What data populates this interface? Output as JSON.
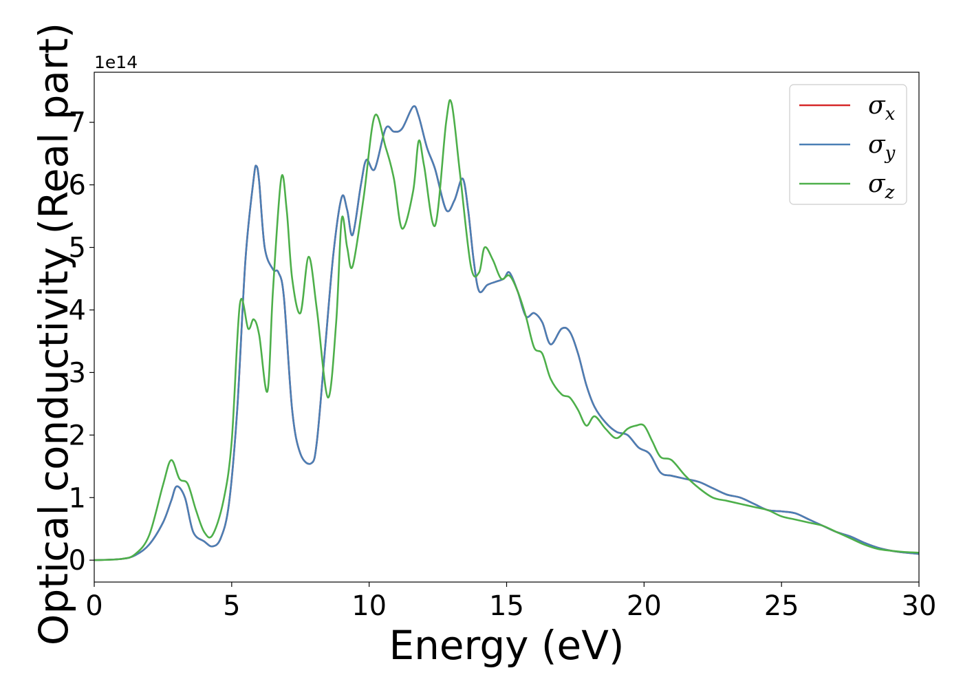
{
  "chart_data": {
    "type": "line",
    "xlabel": "Energy (eV)",
    "ylabel": "Optical conductivity (Real part)",
    "y_offset_label": "1e14",
    "y_scale": 100000000000000.0,
    "xlim": [
      0,
      30
    ],
    "ylim": [
      -0.35,
      7.8
    ],
    "x_ticks": [
      0,
      5,
      10,
      15,
      20,
      25,
      30
    ],
    "x_tick_labels": [
      "0",
      "5",
      "10",
      "15",
      "20",
      "25",
      "30"
    ],
    "y_ticks": [
      0,
      1,
      2,
      3,
      4,
      5,
      6,
      7
    ],
    "y_tick_labels": [
      "0",
      "1",
      "2",
      "3",
      "4",
      "5",
      "6",
      "7"
    ],
    "grid": false,
    "legend_position": "top-right",
    "series": [
      {
        "name": "σx",
        "legend_base": "σ",
        "legend_sub": "x",
        "color": "#d62728",
        "x": [
          0,
          1,
          1.5,
          2,
          2.5,
          2.8,
          3,
          3.3,
          3.6,
          4,
          4.3,
          4.6,
          4.9,
          5.2,
          5.5,
          5.8,
          5.9,
          6.0,
          6.2,
          6.5,
          6.7,
          6.9,
          7.2,
          7.5,
          7.9,
          8.1,
          8.4,
          8.7,
          9.0,
          9.2,
          9.4,
          9.7,
          9.9,
          10.2,
          10.6,
          10.9,
          11.2,
          11.6,
          11.8,
          12.1,
          12.4,
          12.8,
          13.1,
          13.4,
          13.6,
          13.8,
          14.0,
          14.3,
          14.6,
          14.9,
          15.1,
          15.4,
          15.7,
          16.0,
          16.3,
          16.6,
          17.0,
          17.3,
          17.6,
          17.9,
          18.2,
          18.6,
          19.0,
          19.4,
          19.8,
          20.2,
          20.6,
          21.0,
          21.5,
          22.0,
          22.5,
          23.0,
          23.5,
          24.0,
          24.5,
          25.0,
          25.5,
          26.0,
          26.5,
          27.0,
          27.5,
          28.0,
          28.5,
          29.0,
          29.5,
          30.0
        ],
        "values": [
          0,
          0.02,
          0.08,
          0.25,
          0.6,
          0.95,
          1.18,
          1.0,
          0.45,
          0.3,
          0.22,
          0.35,
          0.9,
          2.4,
          4.8,
          6.1,
          6.3,
          6.05,
          5.0,
          4.65,
          4.6,
          4.2,
          2.4,
          1.7,
          1.55,
          1.9,
          3.4,
          4.9,
          5.8,
          5.6,
          5.2,
          6.0,
          6.4,
          6.25,
          6.9,
          6.85,
          6.9,
          7.25,
          7.1,
          6.6,
          6.25,
          5.6,
          5.75,
          6.1,
          5.6,
          4.8,
          4.3,
          4.4,
          4.45,
          4.5,
          4.6,
          4.3,
          3.9,
          3.95,
          3.8,
          3.45,
          3.7,
          3.65,
          3.3,
          2.8,
          2.45,
          2.2,
          2.05,
          2.0,
          1.8,
          1.7,
          1.4,
          1.35,
          1.3,
          1.25,
          1.15,
          1.05,
          1.0,
          0.9,
          0.8,
          0.78,
          0.75,
          0.65,
          0.55,
          0.45,
          0.38,
          0.28,
          0.2,
          0.15,
          0.12,
          0.1
        ]
      },
      {
        "name": "σy",
        "legend_base": "σ",
        "legend_sub": "y",
        "color": "#4a7fb5",
        "x": [
          0,
          1,
          1.5,
          2,
          2.5,
          2.8,
          3,
          3.3,
          3.6,
          4,
          4.3,
          4.6,
          4.9,
          5.2,
          5.5,
          5.8,
          5.9,
          6.0,
          6.2,
          6.5,
          6.7,
          6.9,
          7.2,
          7.5,
          7.9,
          8.1,
          8.4,
          8.7,
          9.0,
          9.2,
          9.4,
          9.7,
          9.9,
          10.2,
          10.6,
          10.9,
          11.2,
          11.6,
          11.8,
          12.1,
          12.4,
          12.8,
          13.1,
          13.4,
          13.6,
          13.8,
          14.0,
          14.3,
          14.6,
          14.9,
          15.1,
          15.4,
          15.7,
          16.0,
          16.3,
          16.6,
          17.0,
          17.3,
          17.6,
          17.9,
          18.2,
          18.6,
          19.0,
          19.4,
          19.8,
          20.2,
          20.6,
          21.0,
          21.5,
          22.0,
          22.5,
          23.0,
          23.5,
          24.0,
          24.5,
          25.0,
          25.5,
          26.0,
          26.5,
          27.0,
          27.5,
          28.0,
          28.5,
          29.0,
          29.5,
          30.0
        ],
        "values": [
          0,
          0.02,
          0.08,
          0.25,
          0.6,
          0.95,
          1.18,
          1.0,
          0.45,
          0.3,
          0.22,
          0.35,
          0.9,
          2.4,
          4.8,
          6.1,
          6.3,
          6.05,
          5.0,
          4.65,
          4.6,
          4.2,
          2.4,
          1.7,
          1.55,
          1.9,
          3.4,
          4.9,
          5.8,
          5.6,
          5.2,
          6.0,
          6.4,
          6.25,
          6.9,
          6.85,
          6.9,
          7.25,
          7.1,
          6.6,
          6.25,
          5.6,
          5.75,
          6.1,
          5.6,
          4.8,
          4.3,
          4.4,
          4.45,
          4.5,
          4.6,
          4.3,
          3.9,
          3.95,
          3.8,
          3.45,
          3.7,
          3.65,
          3.3,
          2.8,
          2.45,
          2.2,
          2.05,
          2.0,
          1.8,
          1.7,
          1.4,
          1.35,
          1.3,
          1.25,
          1.15,
          1.05,
          1.0,
          0.9,
          0.8,
          0.78,
          0.75,
          0.65,
          0.55,
          0.45,
          0.38,
          0.28,
          0.2,
          0.15,
          0.12,
          0.1
        ]
      },
      {
        "name": "σz",
        "legend_base": "σ",
        "legend_sub": "z",
        "color": "#4daf4a",
        "x": [
          0,
          1,
          1.5,
          2,
          2.5,
          2.8,
          3.1,
          3.4,
          3.7,
          4.0,
          4.3,
          4.7,
          5.0,
          5.3,
          5.6,
          5.8,
          6.0,
          6.3,
          6.5,
          6.8,
          7.0,
          7.2,
          7.5,
          7.8,
          8.1,
          8.5,
          8.8,
          9.0,
          9.2,
          9.4,
          9.8,
          10.2,
          10.6,
          10.9,
          11.2,
          11.6,
          11.8,
          12.0,
          12.4,
          12.8,
          13.0,
          13.3,
          13.7,
          14.0,
          14.2,
          14.5,
          14.8,
          15.1,
          15.4,
          15.7,
          16.0,
          16.3,
          16.6,
          17.0,
          17.3,
          17.6,
          17.9,
          18.2,
          18.6,
          19.0,
          19.4,
          19.7,
          20.0,
          20.3,
          20.6,
          21.0,
          21.5,
          22.0,
          22.5,
          23.0,
          23.5,
          24.0,
          24.5,
          25.0,
          25.5,
          26.0,
          26.5,
          27.0,
          27.5,
          28.0,
          28.5,
          29.0,
          29.5,
          30.0
        ],
        "values": [
          0,
          0.02,
          0.1,
          0.4,
          1.2,
          1.6,
          1.3,
          1.22,
          0.8,
          0.45,
          0.4,
          0.95,
          1.9,
          4.1,
          3.7,
          3.85,
          3.6,
          2.7,
          4.3,
          6.1,
          5.6,
          4.5,
          3.95,
          4.85,
          4.0,
          2.6,
          3.8,
          5.45,
          5.0,
          4.7,
          5.8,
          7.1,
          6.6,
          6.1,
          5.3,
          5.9,
          6.7,
          6.3,
          5.35,
          7.0,
          7.3,
          6.2,
          4.7,
          4.6,
          5.0,
          4.8,
          4.5,
          4.55,
          4.3,
          3.9,
          3.4,
          3.3,
          2.9,
          2.65,
          2.6,
          2.4,
          2.15,
          2.3,
          2.1,
          1.95,
          2.1,
          2.15,
          2.15,
          1.9,
          1.65,
          1.6,
          1.35,
          1.15,
          1.0,
          0.95,
          0.9,
          0.85,
          0.8,
          0.7,
          0.65,
          0.6,
          0.55,
          0.45,
          0.35,
          0.25,
          0.18,
          0.15,
          0.13,
          0.12
        ]
      }
    ]
  }
}
